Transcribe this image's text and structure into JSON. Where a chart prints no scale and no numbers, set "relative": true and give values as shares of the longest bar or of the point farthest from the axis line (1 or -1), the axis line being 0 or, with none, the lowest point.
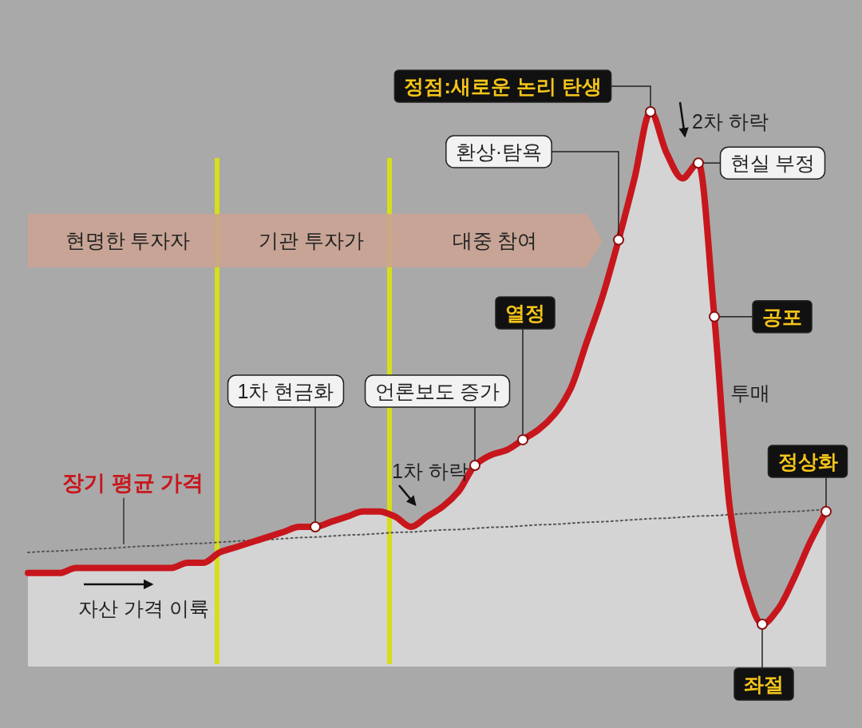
{
  "chart_data": {
    "type": "area",
    "relative": true,
    "categories": [
      null,
      null,
      null,
      null,
      null,
      null,
      null,
      null,
      null,
      null,
      null,
      null,
      null,
      null,
      null,
      null,
      null,
      null,
      null,
      null,
      null,
      null,
      null,
      null,
      null,
      null,
      null,
      null,
      null,
      null,
      null,
      null,
      null,
      null,
      null,
      null,
      null,
      null,
      null,
      null,
      null,
      null,
      null,
      null,
      null,
      null,
      null,
      null,
      null,
      null,
      null
    ],
    "series": [
      {
        "color": "#c8161d",
        "values": [
          0.1,
          0.1,
          0.1,
          0.11,
          0.11,
          0.11,
          0.11,
          0.11,
          0.11,
          0.11,
          0.12,
          0.12,
          0.14,
          0.15,
          0.16,
          0.17,
          0.18,
          0.19,
          0.19,
          0.2,
          0.21,
          0.22,
          0.22,
          0.21,
          0.19,
          0.21,
          0.23,
          0.26,
          0.31,
          0.33,
          0.34,
          0.36,
          0.38,
          0.41,
          0.46,
          0.55,
          0.64,
          0.75,
          0.87,
          1.0,
          0.92,
          0.87,
          0.9,
          0.6,
          0.22,
          0.07,
          0,
          0.03,
          0.09,
          0.16,
          0.22
        ]
      },
      {
        "type": "line",
        "name": "장기 평균 가격",
        "color": "#555555",
        "line_style": "dotted",
        "values": [
          0.14,
          0.142,
          0.143,
          0.145,
          0.147,
          0.148,
          0.15,
          0.152,
          0.153,
          0.155,
          0.157,
          0.158,
          0.16,
          0.162,
          0.164,
          0.165,
          0.167,
          0.169,
          0.17,
          0.172,
          0.174,
          0.175,
          0.177,
          0.179,
          0.18,
          0.182,
          0.184,
          0.185,
          0.187,
          0.189,
          0.19,
          0.192,
          0.194,
          0.195,
          0.197,
          0.199,
          0.2,
          0.202,
          0.204,
          0.206,
          0.207,
          0.209,
          0.211,
          0.212,
          0.214,
          0.216,
          0.217,
          0.219,
          0.22,
          0.222,
          0.224
        ]
      }
    ],
    "annotations": [
      "정점:새로운 논리 탄생",
      "2차 하락",
      "환상·탐욕",
      "현실 부정",
      "열정",
      "공포",
      "투매",
      "1차 현금화",
      "언론보도 증가",
      "1차 하락",
      "정상화",
      "좌절",
      "자산 가격 이륙",
      "현명한 투자자",
      "기관 투자가",
      "대중 참여"
    ]
  }
}
